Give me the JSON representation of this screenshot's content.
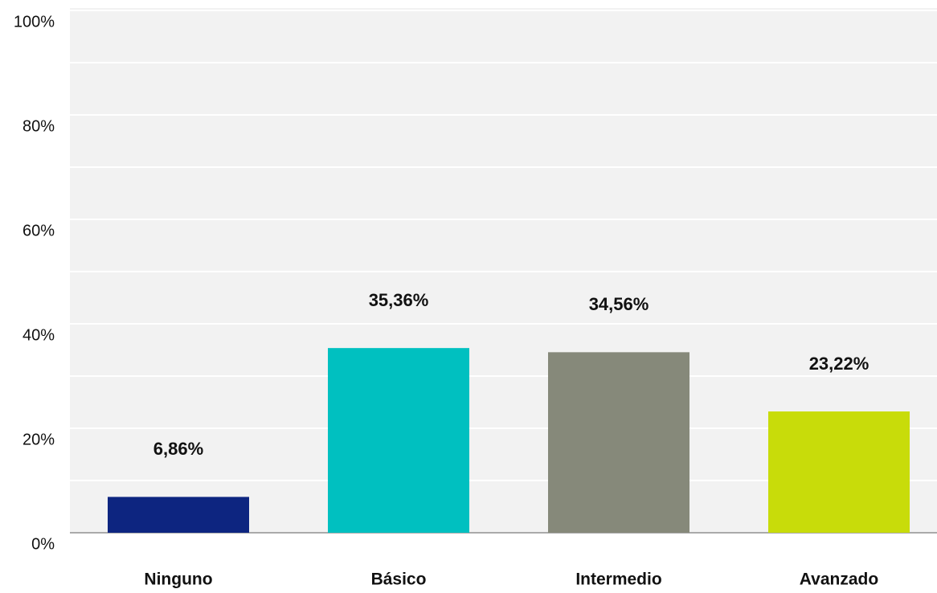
{
  "chart_data": {
    "type": "bar",
    "categories": [
      "Ninguno",
      "Básico",
      "Intermedio",
      "Avanzado"
    ],
    "values": [
      6.86,
      35.36,
      34.56,
      23.22
    ],
    "value_labels": [
      "6,86%",
      "35,36%",
      "34,56%",
      "23,22%"
    ],
    "colors": [
      "#0d2580",
      "#00c0c0",
      "#86897a",
      "#c8dc0a"
    ],
    "ylim": [
      0,
      100
    ],
    "yticks": [
      {
        "value": 0,
        "label": "0%"
      },
      {
        "value": 20,
        "label": "20%"
      },
      {
        "value": 40,
        "label": "40%"
      },
      {
        "value": 60,
        "label": "60%"
      },
      {
        "value": 80,
        "label": "80%"
      },
      {
        "value": 100,
        "label": "100%"
      }
    ],
    "minor_yticks": [
      10,
      30,
      50,
      70,
      90
    ],
    "grid": true
  }
}
